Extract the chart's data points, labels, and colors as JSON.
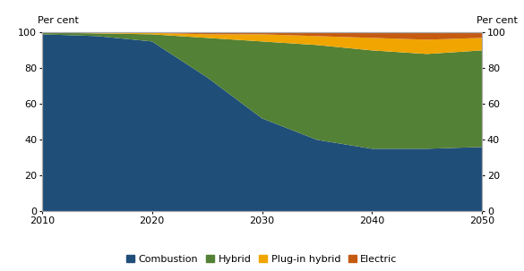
{
  "years": [
    2010,
    2015,
    2020,
    2025,
    2030,
    2035,
    2040,
    2045,
    2050
  ],
  "combustion": [
    99,
    98,
    95,
    75,
    52,
    40,
    35,
    35,
    36
  ],
  "hybrid": [
    1,
    1.5,
    4,
    22,
    43,
    53,
    55,
    53,
    54
  ],
  "plug_hybrid": [
    0,
    0.3,
    0.8,
    2,
    4,
    5,
    7,
    8,
    7
  ],
  "electric": [
    0,
    0.2,
    0.2,
    1,
    1,
    2,
    3,
    4,
    3
  ],
  "color_combustion": "#1f4e79",
  "color_hybrid": "#538135",
  "color_plug_hybrid": "#f0a500",
  "color_electric": "#c55a11",
  "ylabel_left": "Per cent",
  "ylabel_right": "Per cent",
  "ylim": [
    0,
    100
  ],
  "xlim": [
    2010,
    2050
  ],
  "xticks": [
    2010,
    2020,
    2030,
    2040,
    2050
  ],
  "yticks": [
    0,
    20,
    40,
    60,
    80,
    100
  ],
  "legend_labels": [
    "Combustion",
    "Hybrid",
    "Plug-in hybrid",
    "Electric"
  ],
  "background_color": "#ffffff"
}
